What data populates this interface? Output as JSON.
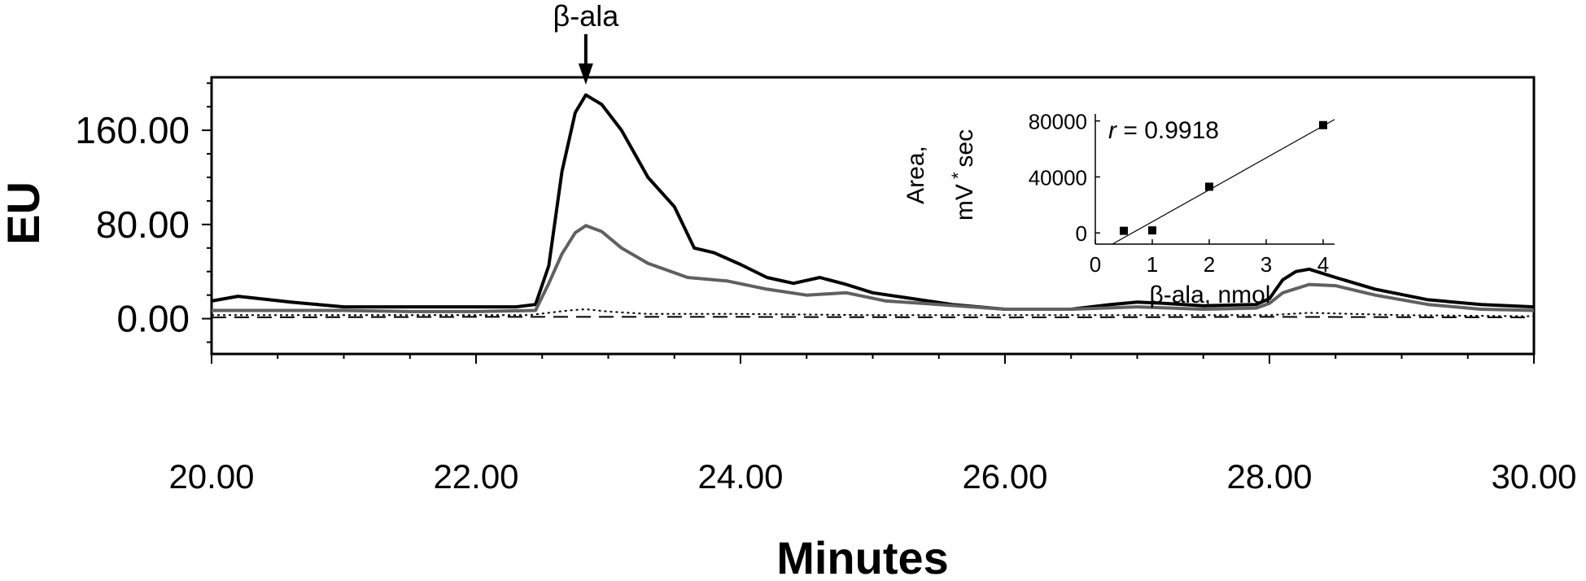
{
  "chart_data": [
    {
      "type": "line",
      "xlabel": "Minutes",
      "ylabel": "EU",
      "xlim": [
        20,
        30
      ],
      "ylim": [
        -30,
        205
      ],
      "x_ticks": [
        20,
        22,
        24,
        26,
        28,
        30
      ],
      "x_tick_labels": [
        "20.00",
        "22.00",
        "24.00",
        "26.00",
        "28.00",
        "30.00"
      ],
      "y_ticks": [
        0,
        80,
        160
      ],
      "y_tick_labels": [
        "0.00",
        "80.00",
        "160.00"
      ],
      "annotation": {
        "text": "β-ala",
        "x": 22.83
      },
      "series": [
        {
          "color": "#000000",
          "style": "solid-thick",
          "x": [
            20.0,
            20.2,
            20.6,
            21.0,
            21.5,
            22.0,
            22.3,
            22.45,
            22.55,
            22.65,
            22.75,
            22.83,
            22.95,
            23.1,
            23.3,
            23.5,
            23.65,
            23.8,
            24.0,
            24.2,
            24.4,
            24.6,
            24.8,
            25.0,
            25.3,
            25.6,
            26.0,
            26.5,
            26.8,
            27.0,
            27.2,
            27.5,
            27.9,
            28.0,
            28.1,
            28.2,
            28.3,
            28.5,
            28.8,
            29.2,
            29.6,
            30.0
          ],
          "y": [
            15,
            19,
            14,
            10,
            10,
            10,
            10,
            12,
            45,
            125,
            175,
            190,
            182,
            160,
            120,
            95,
            60,
            56,
            46,
            35,
            30,
            35,
            29,
            22,
            17,
            12,
            8,
            8,
            12,
            14,
            13,
            11,
            12,
            17,
            33,
            40,
            42,
            35,
            25,
            16,
            12,
            10
          ]
        },
        {
          "color": "#606060",
          "style": "solid",
          "x": [
            20.0,
            20.5,
            21.0,
            21.5,
            22.0,
            22.45,
            22.55,
            22.65,
            22.75,
            22.83,
            22.95,
            23.1,
            23.3,
            23.6,
            23.9,
            24.2,
            24.5,
            24.8,
            25.1,
            25.5,
            26.0,
            26.5,
            27.0,
            27.5,
            27.9,
            28.0,
            28.1,
            28.3,
            28.5,
            28.8,
            29.2,
            29.6,
            30.0
          ],
          "y": [
            7,
            7,
            7,
            6,
            6,
            7,
            30,
            55,
            73,
            79,
            74,
            60,
            47,
            35,
            32,
            25,
            20,
            22,
            15,
            12,
            8,
            8,
            10,
            8,
            9,
            13,
            22,
            29,
            28,
            20,
            12,
            8,
            7
          ]
        },
        {
          "color": "#000000",
          "style": "dotted",
          "x": [
            20.0,
            21.0,
            22.0,
            22.4,
            22.55,
            22.7,
            22.83,
            23.0,
            23.3,
            24.0,
            25.0,
            26.0,
            27.0,
            28.0,
            28.3,
            29.0,
            30.0
          ],
          "y": [
            3,
            3,
            3,
            3,
            5,
            7,
            8,
            6,
            4,
            4,
            3,
            3,
            3,
            3,
            5,
            3,
            2
          ]
        },
        {
          "color": "#000000",
          "style": "dashed",
          "x": [
            20.0,
            22.0,
            24.0,
            26.0,
            28.0,
            30.0
          ],
          "y": [
            1,
            1.5,
            1.5,
            1,
            1.5,
            1
          ]
        }
      ]
    },
    {
      "type": "scatter",
      "xlabel": "β-ala, nmol",
      "ylabel_line1": "Area,",
      "ylabel_line2": "mV",
      "ylabel_star": "*",
      "ylabel_sec": "sec",
      "xlim": [
        0,
        4.2
      ],
      "ylim": [
        -8000,
        85000
      ],
      "x_ticks": [
        0,
        1,
        2,
        3,
        4
      ],
      "x_tick_labels": [
        "0",
        "1",
        "2",
        "3",
        "4"
      ],
      "y_ticks": [
        0,
        40000,
        80000
      ],
      "y_tick_labels": [
        "0",
        "40000",
        "80000"
      ],
      "r_label": "r",
      "r_value": " = 0.9918",
      "points": {
        "x": [
          0.5,
          1,
          2,
          4
        ],
        "y": [
          1500,
          1800,
          33000,
          77000
        ]
      },
      "fit": {
        "x": [
          0.3,
          4.2
        ],
        "y": [
          -8000,
          81000
        ]
      }
    }
  ]
}
